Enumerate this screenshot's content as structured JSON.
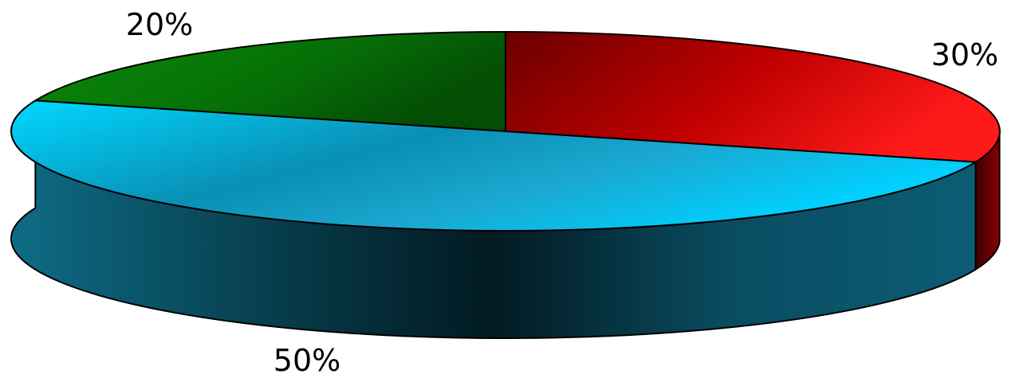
{
  "chart_data": {
    "type": "pie",
    "style": "3d-exploded-cylinder",
    "slices": [
      {
        "label": "30%",
        "value": 30,
        "color": "#ff0000"
      },
      {
        "label": "50%",
        "value": 50,
        "color": "#00ccff"
      },
      {
        "label": "20%",
        "value": 20,
        "color": "#00aa00"
      }
    ],
    "title": "",
    "legend": "none"
  }
}
